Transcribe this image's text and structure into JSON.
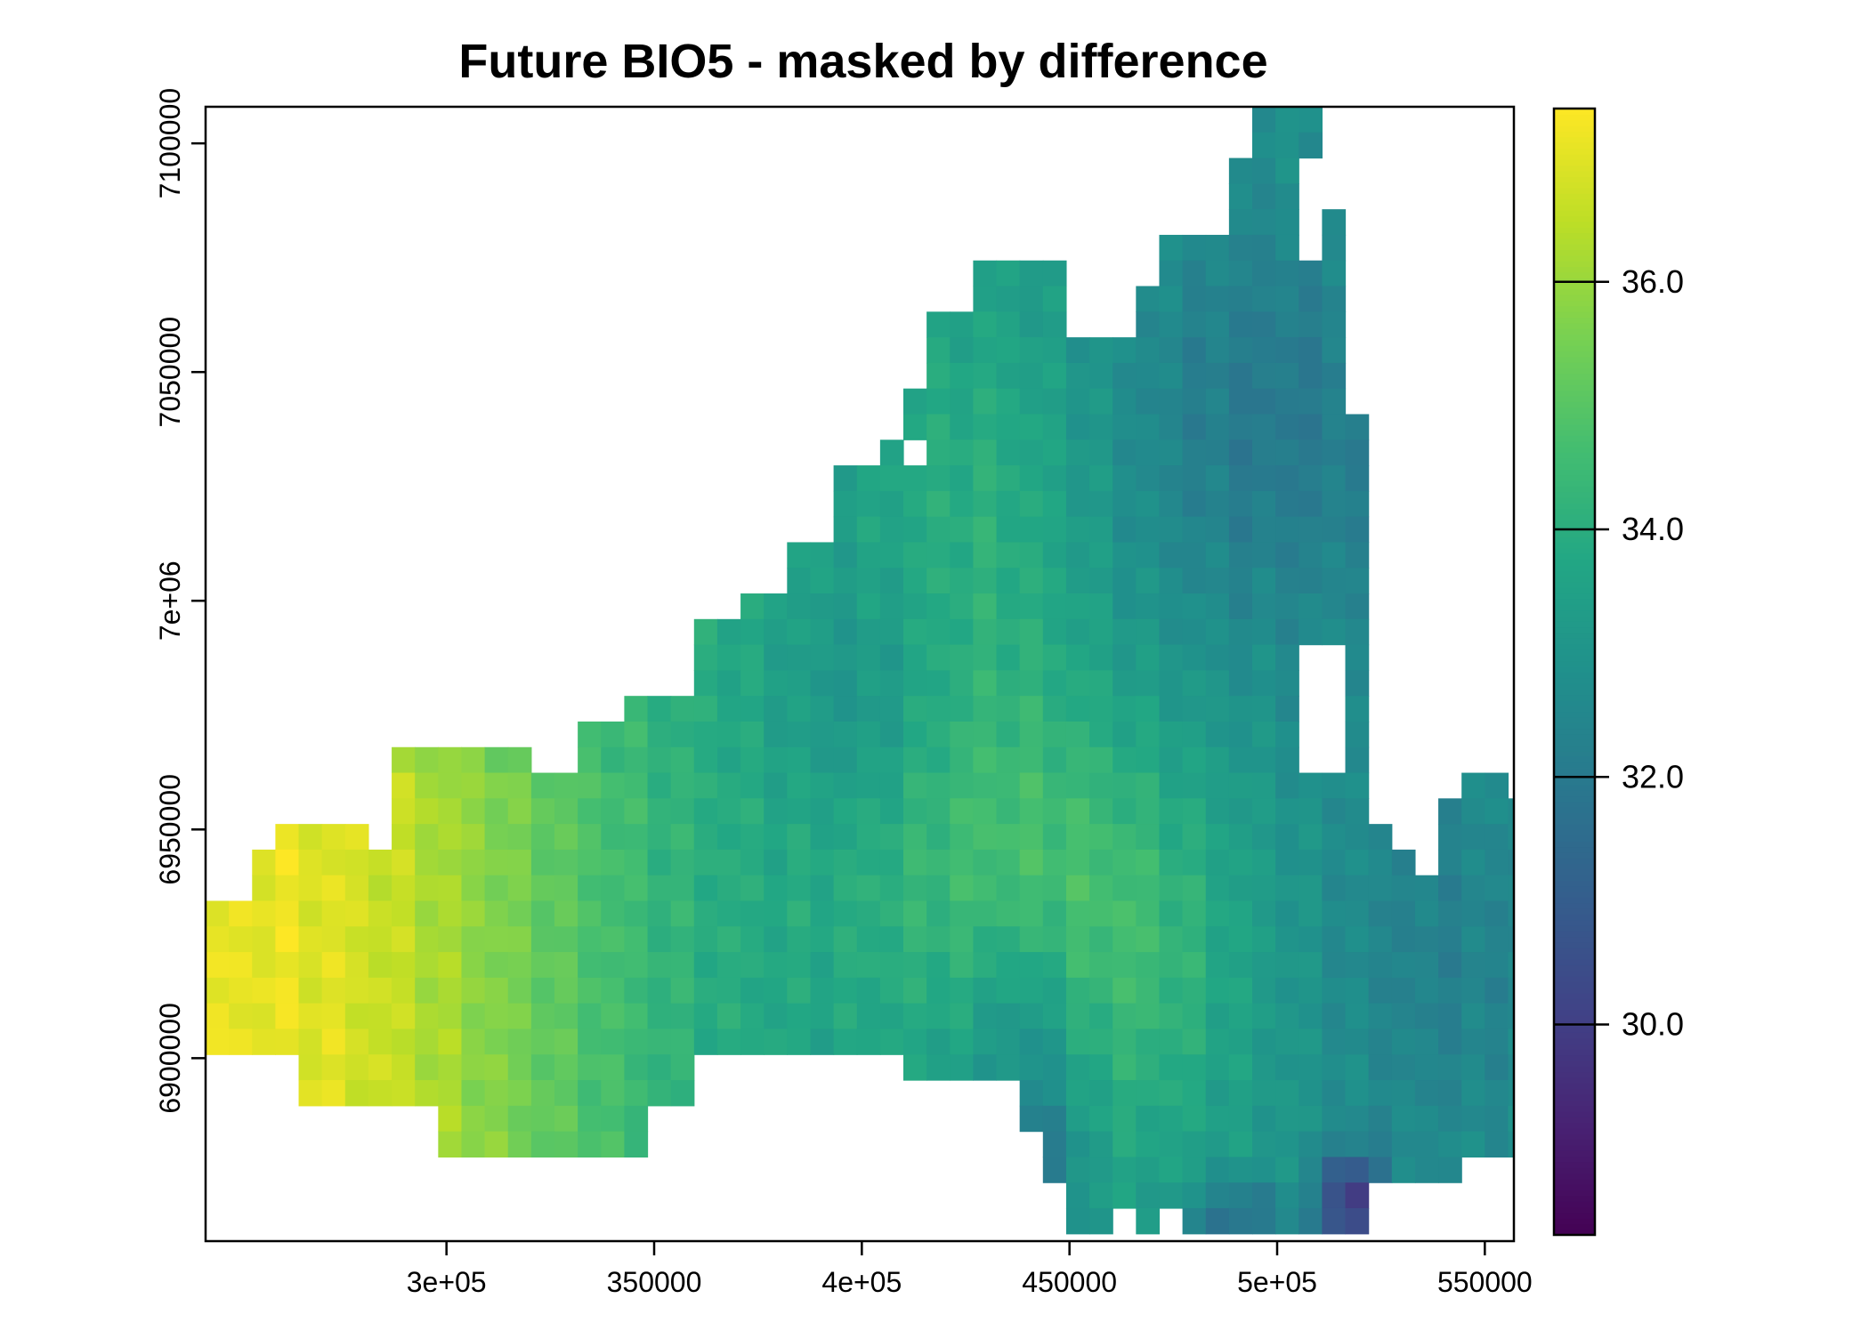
{
  "chart_data": {
    "type": "heatmap",
    "title": "Future BIO5 - masked by difference",
    "xlabel": "",
    "ylabel": "",
    "xlim": [
      242000,
      557000
    ],
    "ylim": [
      6860000,
      7108000
    ],
    "x_ticks": [
      {
        "value": 300000,
        "label": "3e+05"
      },
      {
        "value": 350000,
        "label": "350000"
      },
      {
        "value": 400000,
        "label": "4e+05"
      },
      {
        "value": 450000,
        "label": "450000"
      },
      {
        "value": 500000,
        "label": "5e+05"
      },
      {
        "value": 550000,
        "label": "550000"
      }
    ],
    "y_ticks": [
      {
        "value": 6900000,
        "label": "6900000"
      },
      {
        "value": 6950000,
        "label": "6950000"
      },
      {
        "value": 7000000,
        "label": "7e+06"
      },
      {
        "value": 7050000,
        "label": "7050000"
      },
      {
        "value": 7100000,
        "label": "7100000"
      }
    ],
    "colorbar": {
      "palette": "viridis",
      "min": 28.3,
      "max": 37.4,
      "ticks": [
        {
          "value": 30.0,
          "label": "30.0"
        },
        {
          "value": 32.0,
          "label": "32.0"
        },
        {
          "value": 34.0,
          "label": "34.0"
        },
        {
          "value": 36.0,
          "label": "36.0"
        }
      ]
    },
    "grid": false,
    "legend": "colorbar-right",
    "cell_size_m": 5600,
    "grid_origin": {
      "x0": 242000,
      "y_top": 7108000
    },
    "value_grid_note": "BIO5 values (deg C), rows from north to south, columns from west to east; null = masked",
    "values": [
      [
        null,
        null,
        null,
        null,
        null,
        null,
        null,
        null,
        null,
        null,
        null,
        null,
        null,
        null,
        null,
        null,
        null,
        null,
        null,
        null,
        null,
        null,
        null,
        null,
        null,
        null,
        null,
        null,
        null,
        null,
        null,
        null,
        null,
        null,
        null,
        null,
        null,
        null,
        null,
        null,
        null,
        null,
        null,
        null,
        null,
        null,
        null,
        null,
        null,
        null,
        null,
        null,
        null,
        null,
        null,
        null
      ],
      [
        null,
        null,
        null,
        null,
        null,
        null,
        null,
        null,
        null,
        null,
        null,
        null,
        null,
        null,
        null,
        null,
        null,
        null,
        null,
        null,
        null,
        null,
        null,
        null,
        null,
        null,
        null,
        null,
        null,
        null,
        null,
        null,
        null,
        null,
        null,
        null,
        null,
        null,
        null,
        null,
        null,
        null,
        null,
        null,
        null,
        null,
        null,
        null,
        null,
        null,
        null,
        null,
        null,
        null,
        null,
        null
      ]
    ]
  }
}
